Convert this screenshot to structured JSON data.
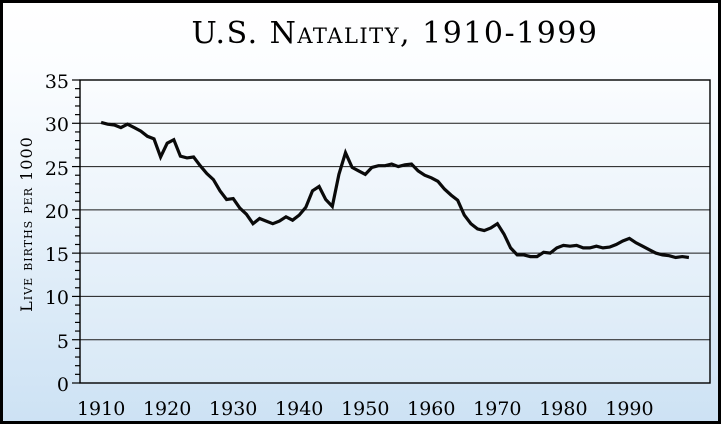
{
  "title": "U.S. Natality, 1910-1999",
  "colors": {
    "background_top": "#ffffff",
    "background_bottom": "#cde2f4",
    "outer_border": "#000000",
    "plot_frame": "#000000",
    "gridline": "#1a1a1a",
    "data_line": "#0a0a0a",
    "text": "#000000"
  },
  "chart_data": {
    "type": "line",
    "title": "U.S. Natality, 1910-1999",
    "xlabel": "",
    "ylabel": "Live births per 1000",
    "ylim": [
      0,
      35
    ],
    "xlim_years": [
      1906.8,
      2002.2
    ],
    "grid": "horizontal major gridlines only",
    "legend": "none",
    "y_major_ticks": [
      0,
      5,
      10,
      15,
      20,
      25,
      30,
      35
    ],
    "y_tick_labels": [
      "0",
      "5",
      "10",
      "15",
      "20",
      "25",
      "30",
      "35"
    ],
    "y_minor_tick_step": 1,
    "x_tick_years": [
      1910,
      1920,
      1930,
      1940,
      1950,
      1960,
      1970,
      1980,
      1990
    ],
    "x_tick_labels": [
      "1910",
      "1920",
      "1930",
      "1940",
      "1950",
      "1960",
      "1970",
      "1980",
      "1990"
    ],
    "x_first_year": 1910,
    "x_last_year": 1999,
    "series": [
      {
        "name": "Live births per 1000 population",
        "x_start_year": 1910,
        "x_step": 1,
        "values": [
          30.1,
          29.9,
          29.8,
          29.5,
          29.9,
          29.5,
          29.1,
          28.5,
          28.2,
          26.1,
          27.7,
          28.1,
          26.2,
          26.0,
          26.1,
          25.1,
          24.2,
          23.5,
          22.2,
          21.2,
          21.3,
          20.2,
          19.5,
          18.4,
          19.0,
          18.7,
          18.4,
          18.7,
          19.2,
          18.8,
          19.4,
          20.3,
          22.2,
          22.7,
          21.2,
          20.4,
          24.1,
          26.6,
          24.9,
          24.5,
          24.1,
          24.9,
          25.1,
          25.1,
          25.3,
          25.0,
          25.2,
          25.3,
          24.5,
          24.0,
          23.7,
          23.3,
          22.4,
          21.7,
          21.1,
          19.4,
          18.4,
          17.8,
          17.6,
          17.9,
          18.4,
          17.2,
          15.6,
          14.8,
          14.8,
          14.6,
          14.6,
          15.1,
          15.0,
          15.6,
          15.9,
          15.8,
          15.9,
          15.6,
          15.6,
          15.8,
          15.6,
          15.7,
          16.0,
          16.4,
          16.7,
          16.2,
          15.8,
          15.4,
          15.0,
          14.8,
          14.7,
          14.5,
          14.6,
          14.5
        ]
      }
    ]
  }
}
